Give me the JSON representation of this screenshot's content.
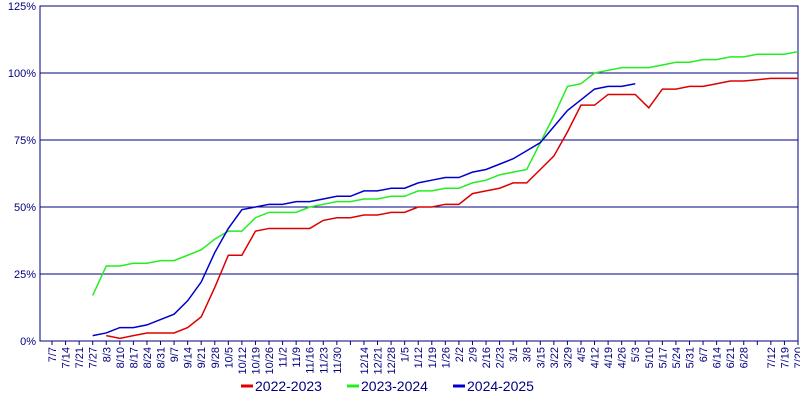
{
  "chart_data": {
    "type": "line",
    "categories": [
      "7/7",
      "7/14",
      "7/21",
      "7/27",
      "8/3",
      "8/10",
      "8/17",
      "8/24",
      "8/31",
      "9/7",
      "9/14",
      "9/21",
      "9/28",
      "10/5",
      "10/12",
      "10/19",
      "10/26",
      "11/2",
      "11/9",
      "11/16",
      "11/23",
      "11/30",
      null,
      "12/14",
      "12/21",
      "12/28",
      "1/5",
      "1/12",
      "1/19",
      "1/26",
      "2/2",
      "2/9",
      "2/16",
      "2/23",
      "3/1",
      "3/8",
      "3/15",
      "3/22",
      "3/29",
      "4/5",
      "4/12",
      "4/19",
      "4/26",
      "5/3",
      "5/10",
      "5/17",
      "5/24",
      "5/31",
      "6/7",
      "6/14",
      "6/21",
      "6/28",
      null,
      "7/12",
      "7/19",
      "7/20"
    ],
    "series": [
      {
        "name": "2022-2023",
        "color": "#dd0000",
        "values": [
          null,
          null,
          null,
          null,
          2,
          1,
          2,
          3,
          3,
          3,
          5,
          9,
          20,
          32,
          32,
          41,
          42,
          42,
          42,
          42,
          45,
          46,
          46,
          47,
          47,
          48,
          48,
          50,
          50,
          51,
          51,
          55,
          56,
          57,
          59,
          59,
          64,
          69,
          78,
          88,
          88,
          92,
          92,
          92,
          87,
          94,
          94,
          95,
          95,
          96,
          97,
          97,
          97.5,
          98,
          98,
          98
        ]
      },
      {
        "name": "2023-2024",
        "color": "#22ee22",
        "values": [
          null,
          null,
          null,
          17,
          28,
          28,
          29,
          29,
          30,
          30,
          32,
          34,
          38,
          41,
          41,
          46,
          48,
          48,
          48,
          50,
          51,
          52,
          52,
          53,
          53,
          54,
          54,
          56,
          56,
          57,
          57,
          59,
          60,
          62,
          63,
          64,
          74,
          84,
          95,
          96,
          100,
          101,
          102,
          102,
          102,
          103,
          104,
          104,
          105,
          105,
          106,
          106,
          107,
          107,
          107,
          108
        ]
      },
      {
        "name": "2024-2025",
        "color": "#0000cc",
        "values": [
          null,
          null,
          null,
          2,
          3,
          5,
          5,
          6,
          8,
          10,
          15,
          22,
          33,
          42,
          49,
          50,
          51,
          51,
          52,
          52,
          53,
          54,
          54,
          56,
          56,
          57,
          57,
          59,
          60,
          61,
          61,
          63,
          64,
          66,
          68,
          71,
          74,
          80,
          86,
          90,
          94,
          95,
          95,
          96,
          null,
          null,
          null,
          null,
          null,
          null,
          null,
          null,
          null,
          null,
          null,
          null
        ]
      }
    ],
    "ylim": [
      0,
      125
    ],
    "yticks": [
      {
        "value": 0,
        "label": "0%"
      },
      {
        "value": 25,
        "label": "25%"
      },
      {
        "value": 50,
        "label": "50%"
      },
      {
        "value": 75,
        "label": "75%"
      },
      {
        "value": 100,
        "label": "100%"
      },
      {
        "value": 125,
        "label": "125%"
      }
    ],
    "grid": true,
    "legend": "bottom"
  }
}
